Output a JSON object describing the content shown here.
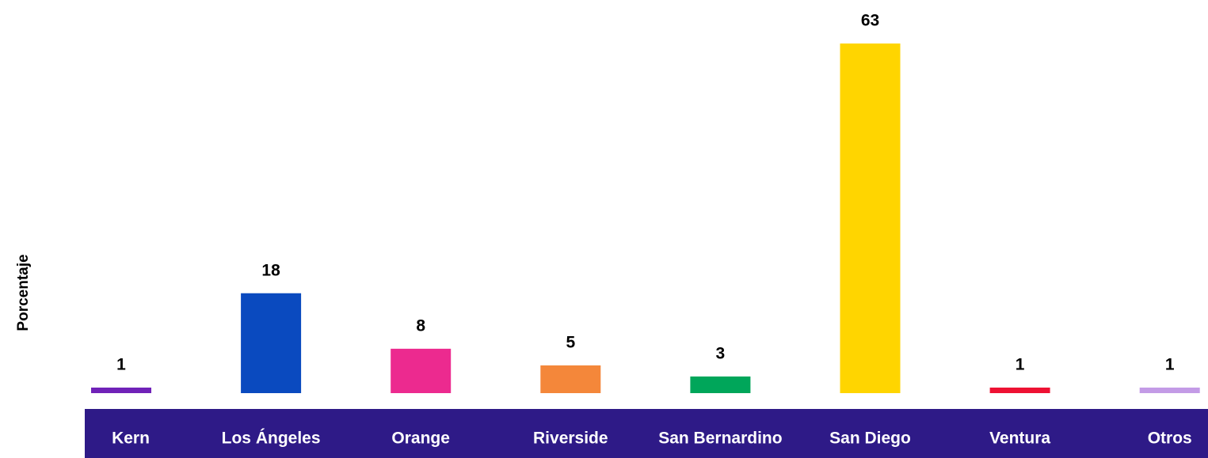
{
  "chart_data": {
    "type": "bar",
    "ylabel": "Porcentaje",
    "categories": [
      "Kern",
      "Los Ángeles",
      "Orange",
      "Riverside",
      "San Bernardino",
      "San Diego",
      "Ventura",
      "Otros"
    ],
    "values": [
      1,
      18,
      8,
      5,
      3,
      63,
      1,
      1
    ],
    "colors": [
      "#7022b8",
      "#0a4abf",
      "#ec2a8f",
      "#f4873a",
      "#00a65a",
      "#ffd500",
      "#ee1133",
      "#c39be6"
    ],
    "ylim": [
      0,
      63
    ]
  }
}
